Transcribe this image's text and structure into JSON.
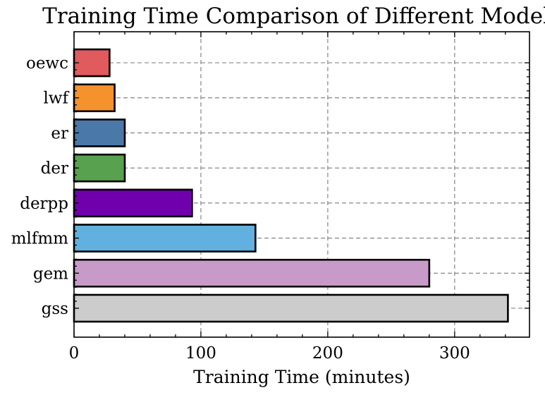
{
  "chart_data": {
    "type": "bar",
    "orientation": "horizontal",
    "title": "Training Time Comparison of Different Models",
    "xlabel": "Training Time (minutes)",
    "ylabel": "",
    "categories": [
      "oewc",
      "lwf",
      "er",
      "der",
      "derpp",
      "mlfmm",
      "gem",
      "gss"
    ],
    "values": [
      28,
      32,
      40,
      40,
      93,
      143,
      280,
      342
    ],
    "colors": [
      "#e05a5e",
      "#f5922e",
      "#4a78a8",
      "#58a14e",
      "#7000ac",
      "#62b0e0",
      "#c89ac8",
      "#cccccc"
    ],
    "xlim": [
      0,
      359
    ],
    "xticks": [
      0,
      100,
      200,
      300
    ],
    "xtick_labels": [
      "0",
      "100",
      "200",
      "300"
    ],
    "grid": true,
    "legend": "none"
  }
}
